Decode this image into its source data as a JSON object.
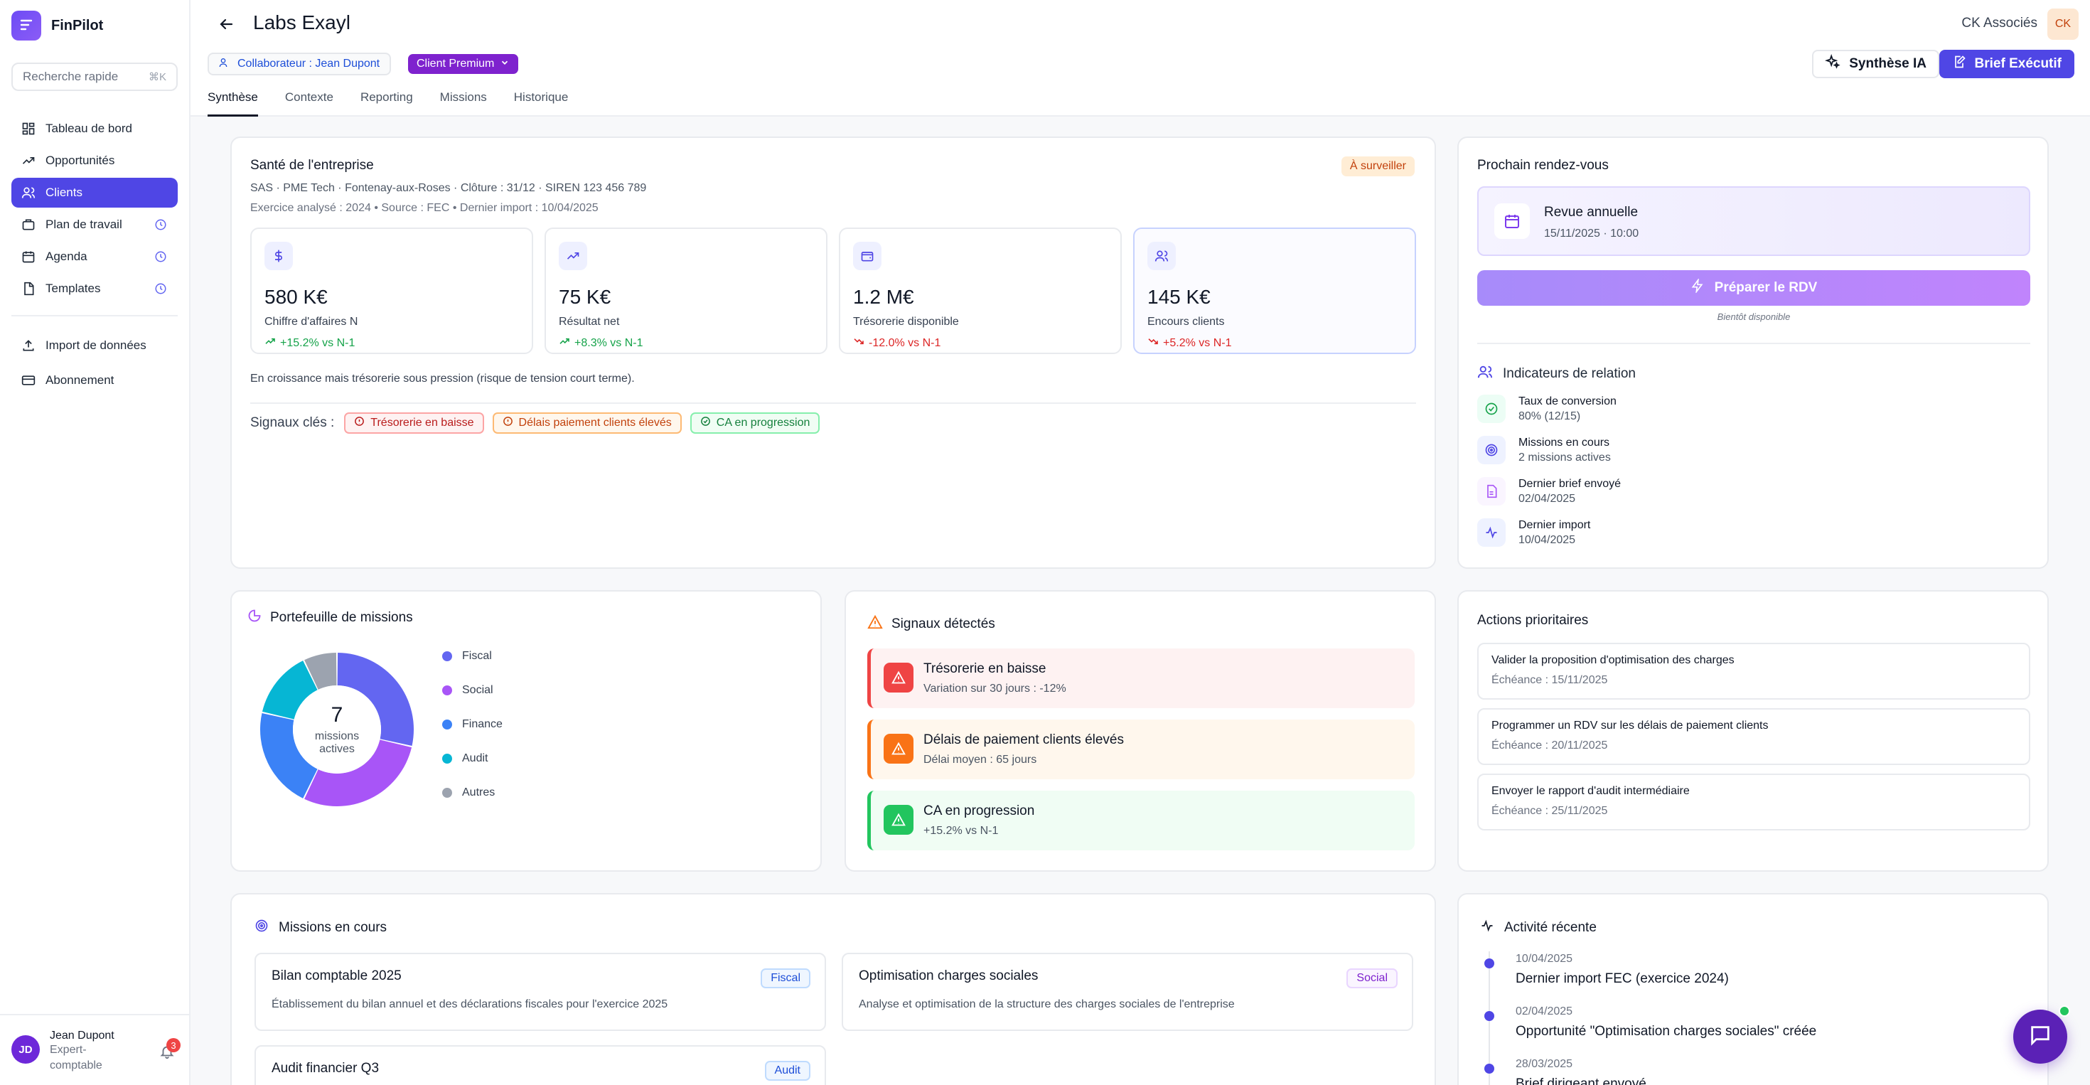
{
  "app": {
    "name": "FinPilot"
  },
  "sidebar": {
    "search_placeholder": "Recherche rapide",
    "search_shortcut": "⌘K",
    "items": [
      {
        "label": "Tableau de bord",
        "icon": "dashboard-icon"
      },
      {
        "label": "Opportunités",
        "icon": "trending-up-icon"
      },
      {
        "label": "Clients",
        "icon": "users-icon",
        "active": true
      },
      {
        "label": "Plan de travail",
        "icon": "briefcase-icon"
      },
      {
        "label": "Agenda",
        "icon": "calendar-icon"
      },
      {
        "label": "Templates",
        "icon": "document-icon"
      }
    ],
    "lower_items": [
      {
        "label": "Import de données",
        "icon": "upload-icon"
      },
      {
        "label": "Abonnement",
        "icon": "credit-card-icon"
      }
    ],
    "user": {
      "initials": "JD",
      "name": "Jean Dupont",
      "role": "Expert-comptable",
      "notifications": "3"
    }
  },
  "header": {
    "title": "Labs Exayl",
    "collaborator": "Collaborateur : Jean Dupont",
    "segment": "Client Premium",
    "firm": "CK Associés",
    "firm_initials": "CK",
    "btn_synthese": "Synthèse IA",
    "btn_brief": "Brief Exécutif",
    "tabs": [
      "Synthèse",
      "Contexte",
      "Reporting",
      "Missions",
      "Historique"
    ],
    "active_tab": "Synthèse"
  },
  "sante": {
    "title": "Santé de l'entreprise",
    "badge": "À surveiller",
    "meta1": "SAS · PME Tech · Fontenay-aux-Roses · Clôture : 31/12 · SIREN 123 456 789",
    "meta2": "Exercice analysé : 2024 • Source : FEC • Dernier import : 10/04/2025",
    "kpis": [
      {
        "value": "580 K€",
        "label": "Chiffre d'affaires N",
        "delta": "+15.2% vs N-1",
        "trend": "up",
        "icon": "dollar-icon"
      },
      {
        "value": "75 K€",
        "label": "Résultat net",
        "delta": "+8.3% vs N-1",
        "trend": "up",
        "icon": "trending-up-icon"
      },
      {
        "value": "1.2 M€",
        "label": "Trésorerie disponible",
        "delta": "-12.0% vs N-1",
        "trend": "down",
        "icon": "wallet-icon"
      },
      {
        "value": "145 K€",
        "label": "Encours clients",
        "delta": "+5.2% vs N-1",
        "trend": "down",
        "icon": "users-icon"
      }
    ],
    "summary": "En croissance mais trésorerie sous pression (risque de tension court terme).",
    "signals_label": "Signaux clés :",
    "signals": [
      {
        "label": "Trésorerie en baisse",
        "tone": "red"
      },
      {
        "label": "Délais paiement clients élevés",
        "tone": "orange"
      },
      {
        "label": "CA en progression",
        "tone": "green"
      }
    ]
  },
  "rdv": {
    "title": "Prochain rendez-vous",
    "event": "Revue annuelle",
    "datetime": "15/11/2025 · 10:00",
    "prepare": "Préparer le RDV",
    "soon": "Bientôt disponible"
  },
  "indicators": {
    "title": "Indicateurs de relation",
    "items": [
      {
        "label": "Taux de conversion",
        "value": "80% (12/15)",
        "icon": "check-circle-icon"
      },
      {
        "label": "Missions en cours",
        "value": "2 missions actives",
        "icon": "target-icon"
      },
      {
        "label": "Dernier brief envoyé",
        "value": "02/04/2025",
        "icon": "file-icon"
      },
      {
        "label": "Dernier import",
        "value": "10/04/2025",
        "icon": "activity-icon"
      }
    ]
  },
  "portefeuille": {
    "title": "Portefeuille de missions",
    "center_value": "7",
    "center_label_1": "missions",
    "center_label_2": "actives"
  },
  "chart_data": {
    "type": "pie",
    "categories": [
      "Fiscal",
      "Social",
      "Finance",
      "Audit",
      "Autres"
    ],
    "values": [
      2,
      2,
      1.5,
      1,
      0.5
    ],
    "colors": [
      "#6366f1",
      "#a855f7",
      "#3b82f6",
      "#06b6d4",
      "#9ca3af"
    ],
    "donut": true,
    "legend": "right"
  },
  "signaux": {
    "title": "Signaux détectés",
    "items": [
      {
        "title": "Trésorerie en baisse",
        "desc": "Variation sur 30 jours : -12%",
        "tone": "red"
      },
      {
        "title": "Délais de paiement clients élevés",
        "desc": "Délai moyen : 65 jours",
        "tone": "orange"
      },
      {
        "title": "CA en progression",
        "desc": "+15.2% vs N-1",
        "tone": "green"
      }
    ]
  },
  "actions": {
    "title": "Actions prioritaires",
    "items": [
      {
        "title": "Valider la proposition d'optimisation des charges",
        "due": "Échéance : 15/11/2025"
      },
      {
        "title": "Programmer un RDV sur les délais de paiement clients",
        "due": "Échéance : 20/11/2025"
      },
      {
        "title": "Envoyer le rapport d'audit intermédiaire",
        "due": "Échéance : 25/11/2025"
      }
    ]
  },
  "missions": {
    "title": "Missions en cours",
    "items": [
      {
        "title": "Bilan comptable 2025",
        "desc": "Établissement du bilan annuel et des déclarations fiscales pour l'exercice 2025",
        "tag": "Fiscal"
      },
      {
        "title": "Optimisation charges sociales",
        "desc": "Analyse et optimisation de la structure des charges sociales de l'entreprise",
        "tag": "Social"
      },
      {
        "title": "Audit financier Q3",
        "desc": "",
        "tag": "Audit"
      }
    ]
  },
  "activite": {
    "title": "Activité récente",
    "items": [
      {
        "date": "10/04/2025",
        "text": "Dernier import FEC (exercice 2024)"
      },
      {
        "date": "02/04/2025",
        "text": "Opportunité \"Optimisation charges sociales\" créée"
      },
      {
        "date": "28/03/2025",
        "text": "Brief dirigeant envoyé"
      }
    ]
  }
}
